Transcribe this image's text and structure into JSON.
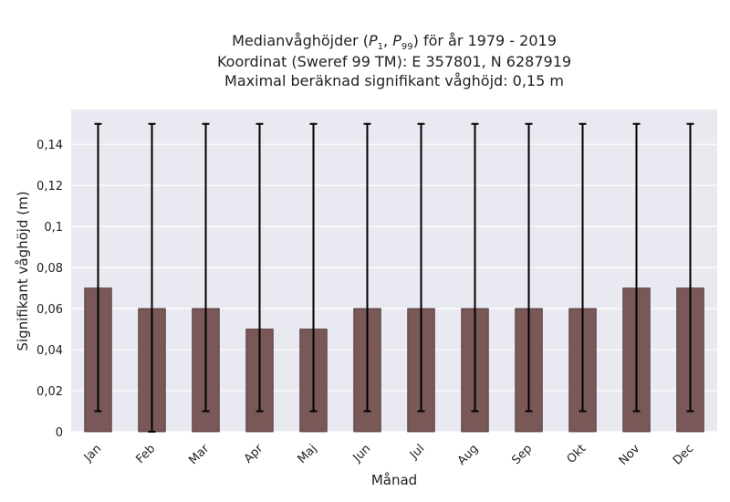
{
  "chart_data": {
    "type": "bar",
    "title_prefix": "Medianvåghöjder (",
    "title_p1": "P",
    "title_p1_sub": "1",
    "title_comma": ", ",
    "title_p2": "P",
    "title_p2_sub": "99",
    "title_suffix": ") för år 1979 - 2019",
    "subtitle_1": "Koordinat (Sweref 99 TM): E 357801, N 6287919",
    "subtitle_2": "Maximal beräknad signifikant våghöjd: 0,15 m",
    "xlabel": "Månad",
    "ylabel": "Signifikant våghöjd (m)",
    "categories": [
      "Jan",
      "Feb",
      "Mar",
      "Apr",
      "Maj",
      "Jun",
      "Jul",
      "Aug",
      "Sep",
      "Okt",
      "Nov",
      "Dec"
    ],
    "values": [
      0.07,
      0.06,
      0.06,
      0.05,
      0.05,
      0.06,
      0.06,
      0.06,
      0.06,
      0.06,
      0.07,
      0.07
    ],
    "err_low": [
      0.01,
      0.0,
      0.01,
      0.01,
      0.01,
      0.01,
      0.01,
      0.01,
      0.01,
      0.01,
      0.01,
      0.01
    ],
    "err_high": [
      0.15,
      0.15,
      0.15,
      0.15,
      0.15,
      0.15,
      0.15,
      0.15,
      0.15,
      0.15,
      0.15,
      0.15
    ],
    "yticks": [
      0,
      0.02,
      0.04,
      0.06,
      0.08,
      0.1,
      0.12,
      0.14
    ],
    "ytick_labels": [
      "0",
      "0,02",
      "0,04",
      "0,06",
      "0,08",
      "0,1",
      "0,12",
      "0,14"
    ],
    "ylim": [
      0,
      0.157
    ],
    "grid": true,
    "bar_color": "#7b5858",
    "bg_color": "#e9e9f1",
    "error_color": "#000000"
  }
}
